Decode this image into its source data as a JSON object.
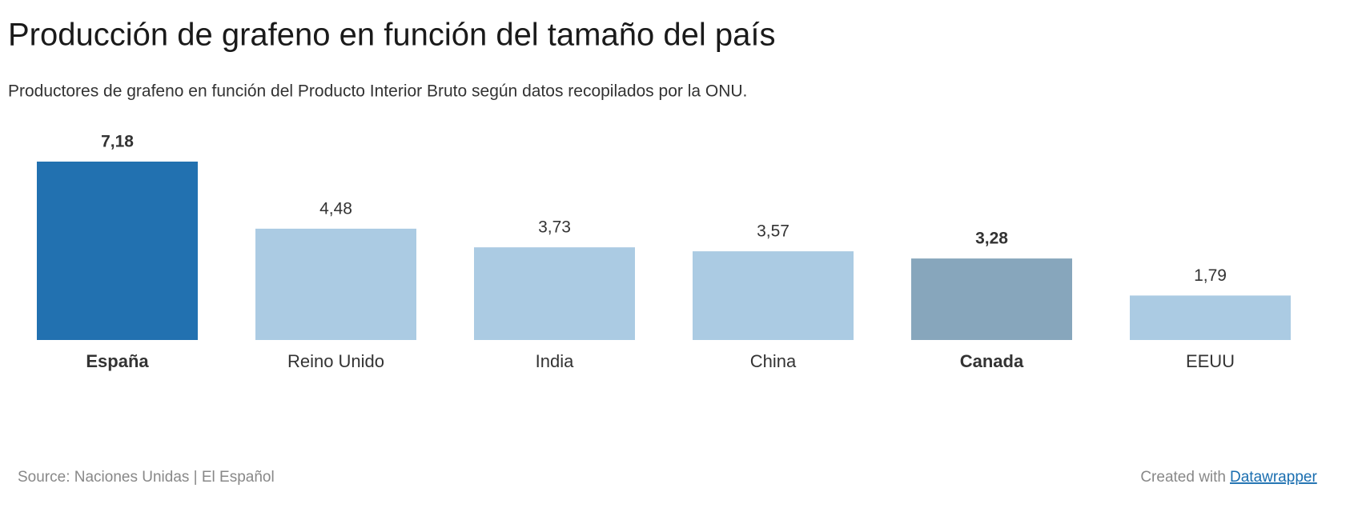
{
  "chart_data": {
    "type": "bar",
    "title": "Producción de grafeno en función del tamaño del país",
    "subtitle": "Productores de grafeno en función del Producto Interior Bruto según datos recopilados por la ONU.",
    "categories": [
      "España",
      "Reino Unido",
      "India",
      "China",
      "Canada",
      "EEUU"
    ],
    "values": [
      7.18,
      4.48,
      3.73,
      3.57,
      3.28,
      1.79
    ],
    "value_labels": [
      "7,18",
      "4,48",
      "3,73",
      "3,57",
      "3,28",
      "1,79"
    ],
    "colors": [
      "#2271b0",
      "#abcbe3",
      "#abcbe3",
      "#abcbe3",
      "#87a6bc",
      "#abcbe3"
    ],
    "bold": [
      true,
      false,
      false,
      false,
      true,
      false
    ],
    "source": "Source: Naciones Unidas | El Español",
    "credit": "Created with",
    "credit_link": "Datawrapper"
  }
}
